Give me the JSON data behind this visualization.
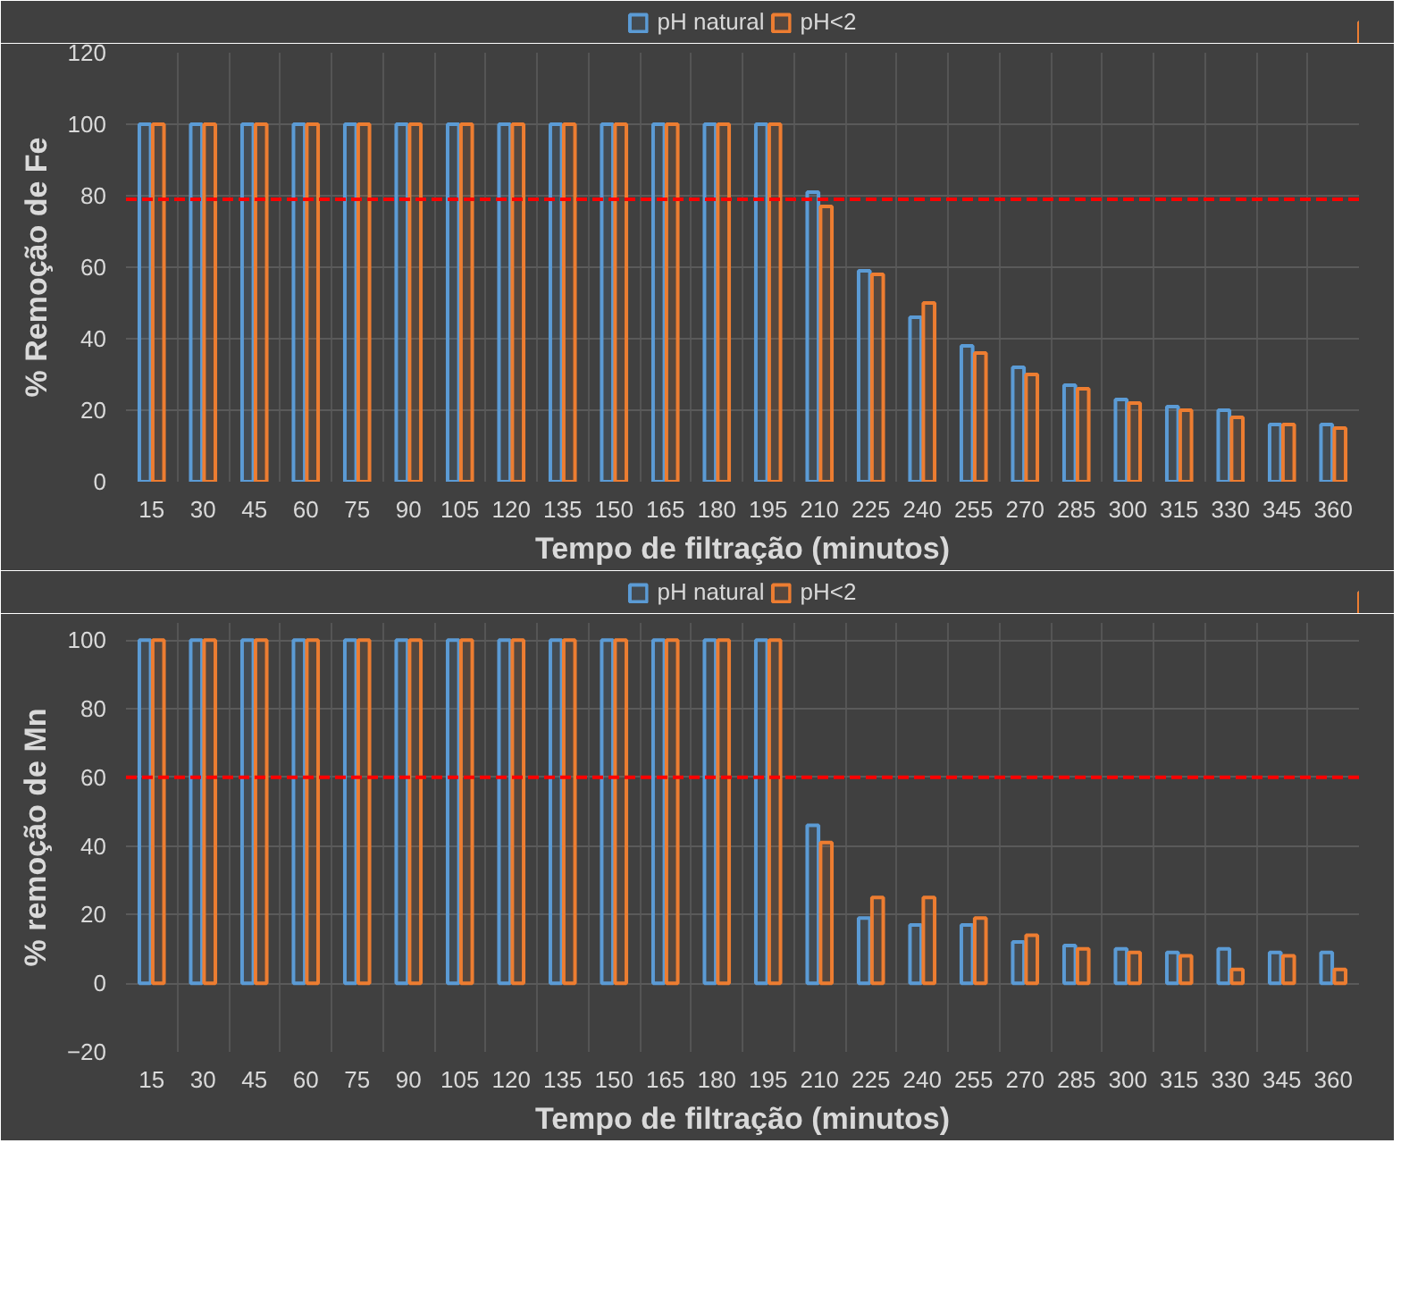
{
  "chart_data": [
    {
      "type": "bar",
      "xlabel": "Tempo de filtração (minutos)",
      "ylabel": "% Remoção de Fe",
      "categories": [
        "15",
        "30",
        "45",
        "60",
        "75",
        "90",
        "105",
        "120",
        "135",
        "150",
        "165",
        "180",
        "195",
        "210",
        "225",
        "240",
        "255",
        "270",
        "285",
        "300",
        "315",
        "330",
        "345",
        "360"
      ],
      "series": [
        {
          "name": "pH natural",
          "color": "#5b9bd5",
          "values": [
            100,
            100,
            100,
            100,
            100,
            100,
            100,
            100,
            100,
            100,
            100,
            100,
            100,
            81,
            59,
            46,
            38,
            32,
            27,
            23,
            21,
            20,
            16,
            16
          ]
        },
        {
          "name": "pH<2",
          "color": "#ed7d31",
          "values": [
            100,
            100,
            100,
            100,
            100,
            100,
            100,
            100,
            100,
            100,
            100,
            100,
            100,
            77,
            58,
            50,
            36,
            30,
            26,
            22,
            20,
            18,
            16,
            15
          ]
        }
      ],
      "ylim": [
        0,
        120
      ],
      "yticks": [
        0,
        20,
        40,
        60,
        80,
        100,
        120
      ],
      "grid": true,
      "legend": "top",
      "ref_lines": [
        {
          "axis": "y",
          "value": 79,
          "color": "#ff0000",
          "line_style": "dashed"
        }
      ]
    },
    {
      "type": "bar",
      "xlabel": "Tempo de filtração (minutos)",
      "ylabel": "% remoção de Mn",
      "categories": [
        "15",
        "30",
        "45",
        "60",
        "75",
        "90",
        "105",
        "120",
        "135",
        "150",
        "165",
        "180",
        "195",
        "210",
        "225",
        "240",
        "255",
        "270",
        "285",
        "300",
        "315",
        "330",
        "345",
        "360"
      ],
      "series": [
        {
          "name": "pH natural",
          "color": "#5b9bd5",
          "values": [
            100,
            100,
            100,
            100,
            100,
            100,
            100,
            100,
            100,
            100,
            100,
            100,
            100,
            46,
            19,
            17,
            17,
            12,
            11,
            10,
            9,
            10,
            9,
            9
          ]
        },
        {
          "name": "pH<2",
          "color": "#ed7d31",
          "values": [
            100,
            100,
            100,
            100,
            100,
            100,
            100,
            100,
            100,
            100,
            100,
            100,
            100,
            41,
            25,
            25,
            19,
            14,
            10,
            9,
            8,
            4,
            8,
            4
          ]
        }
      ],
      "ylim": [
        -20,
        105
      ],
      "yticks": [
        -20,
        0,
        20,
        40,
        60,
        80,
        100
      ],
      "grid": true,
      "legend": "top",
      "ref_lines": [
        {
          "axis": "y",
          "value": 60,
          "color": "#ff0000",
          "line_style": "dashed"
        }
      ]
    }
  ]
}
